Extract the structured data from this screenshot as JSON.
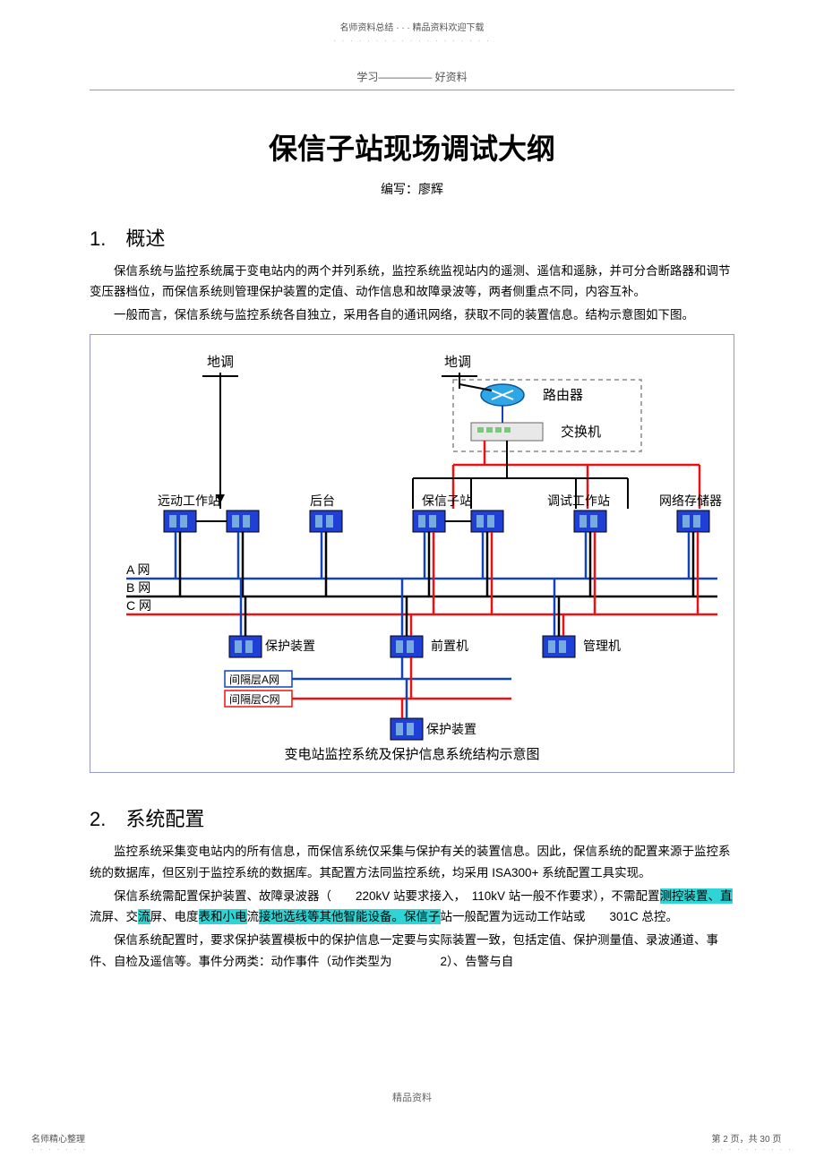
{
  "header": {
    "line1": "名师资料总结 ·  ·  · 精品资料欢迎下载",
    "line2": "· · · · · · · · · · · · · · · · · · ·"
  },
  "running_head": "学习————— 好资料",
  "title": "保信子站现场调试大纲",
  "author": "编写：廖辉",
  "section1": {
    "heading": "1.　概述",
    "p1": "保信系统与监控系统属于变电站内的两个并列系统，监控系统监视站内的遥测、遥信和遥脉，并可分合断路器和调节变压器档位，而保信系统则管理保护装置的定值、动作信息和故障录波等，两者侧重点不同，内容互补。",
    "p2": "一般而言，保信系统与监控系统各自独立，采用各自的通讯网络，获取不同的装置信息。结构示意图如下图。"
  },
  "diagram": {
    "caption": "变电站监控系统及保护信息系统结构示意图",
    "labels": {
      "didiao1": "地调",
      "didiao2": "地调",
      "router": "路由器",
      "switch": "交换机",
      "ws_remote": "远动工作站",
      "backend": "后台",
      "baoxin": "保信子站",
      "debug_ws": "调试工作站",
      "nas": "网络存储器",
      "a_net": "A 网",
      "b_net": "B 网",
      "c_net": "C 网",
      "protect1": "保护装置",
      "front": "前置机",
      "mgmt": "管理机",
      "bay_a": "间隔层A网",
      "bay_c": "间隔层C网",
      "protect2": "保护装置"
    },
    "colors": {
      "box_fill": "#1f3fd6",
      "box_inner": "#9fb4ff",
      "red_line": "#e11",
      "blue_line": "#14b",
      "black_line": "#000",
      "gray_dash": "#888",
      "router_fill": "#2fa6e6",
      "switch_fill": "#e8e8e8"
    }
  },
  "section2": {
    "heading": "2.　系统配置",
    "p1": "监控系统采集变电站内的所有信息，而保信系统仅采集与保护有关的装置信息。因此，保信系统的配置来源于监控系统的数据库，但区别于监控系统的数据库。其配置方法同监控系统，均采用 ISA300+ 系统配置工具实现。",
    "p2_a": "保信系统需配置保护装置、故障录波器（　　220kV 站要求接入，　110kV 站一般不作要求），不需配置",
    "p2_hl1": "测控装置、直",
    "p2_b": "流屏、交",
    "p2_hl2": "流",
    "p2_c": "屏、电度",
    "p2_hl3": "表和小电",
    "p2_d": "流",
    "p2_hl4": "接地选线等其他智能设备。保信子",
    "p2_e": "站一般配置为远动工作站或　　301C 总控。",
    "p3": "保信系统配置时，要求保护装置模板中的保护信息一定要与实际装置一致，包括定值、保护测量值、录波通道、事件、自检及遥信等。事件分两类：动作事件（动作类型为　　　　2）、告警与自"
  },
  "footer": {
    "center": "精品资料"
  },
  "bottom_left": {
    "line1": "名师精心整理",
    "line2": "· · · · · · ·"
  },
  "bottom_right": {
    "line1": "第 2 页，共 30 页",
    "line2": "· · · · · · · · · ·"
  }
}
